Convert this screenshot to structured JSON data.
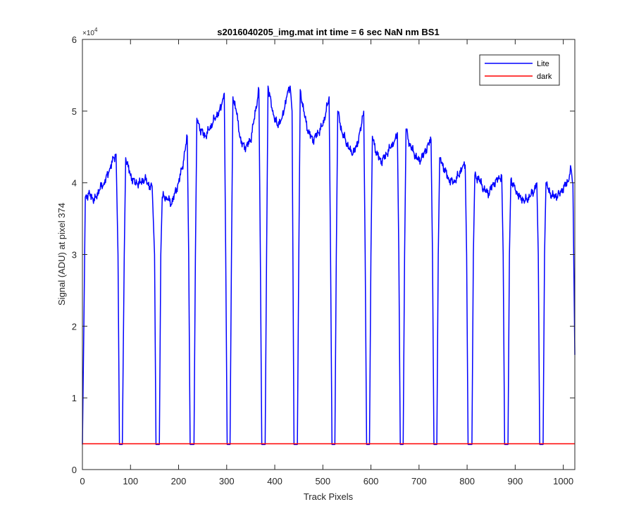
{
  "chart_data": {
    "type": "line",
    "title": "s2016040205_img.mat int time = 6 sec  NaN nm BS1",
    "xlabel": "Track Pixels",
    "ylabel": "Signal (ADU) at pixel 374",
    "xlim": [
      0,
      1024
    ],
    "ylim": [
      0,
      60000
    ],
    "x_ticks": [
      0,
      100,
      200,
      300,
      400,
      500,
      600,
      700,
      800,
      900,
      1000
    ],
    "y_ticks": [
      0,
      10000,
      20000,
      30000,
      40000,
      50000,
      60000
    ],
    "y_tick_labels": [
      "0",
      "1",
      "2",
      "3",
      "4",
      "5",
      "6"
    ],
    "y_multiplier": "×10",
    "y_multiplier_exp": "4",
    "grid": false,
    "legend_position": "top-right",
    "series": [
      {
        "name": "Lite",
        "color": "#0000ff",
        "baseline": 3500,
        "points": [
          [
            0,
            3500
          ],
          [
            3,
            20000
          ],
          [
            6,
            38000
          ],
          [
            15,
            38500
          ],
          [
            25,
            37500
          ],
          [
            35,
            39000
          ],
          [
            45,
            40000
          ],
          [
            55,
            41500
          ],
          [
            65,
            43500
          ],
          [
            70,
            44000
          ],
          [
            74,
            30000
          ],
          [
            77,
            3500
          ],
          [
            83,
            3500
          ],
          [
            87,
            30000
          ],
          [
            90,
            43500
          ],
          [
            100,
            41000
          ],
          [
            110,
            40000
          ],
          [
            120,
            40000
          ],
          [
            130,
            40500
          ],
          [
            140,
            39500
          ],
          [
            145,
            39500
          ],
          [
            150,
            30000
          ],
          [
            153,
            3500
          ],
          [
            160,
            3500
          ],
          [
            163,
            30000
          ],
          [
            166,
            38000
          ],
          [
            175,
            38000
          ],
          [
            185,
            37000
          ],
          [
            192,
            38500
          ],
          [
            200,
            40000
          ],
          [
            210,
            43000
          ],
          [
            218,
            46500
          ],
          [
            221,
            30000
          ],
          [
            224,
            3500
          ],
          [
            232,
            3500
          ],
          [
            235,
            30000
          ],
          [
            238,
            49000
          ],
          [
            245,
            47500
          ],
          [
            255,
            46500
          ],
          [
            265,
            47500
          ],
          [
            275,
            49000
          ],
          [
            285,
            50000
          ],
          [
            290,
            51000
          ],
          [
            295,
            52500
          ],
          [
            298,
            30000
          ],
          [
            301,
            3500
          ],
          [
            307,
            3500
          ],
          [
            310,
            30000
          ],
          [
            313,
            52000
          ],
          [
            320,
            50000
          ],
          [
            330,
            45500
          ],
          [
            340,
            45000
          ],
          [
            350,
            46000
          ],
          [
            360,
            50000
          ],
          [
            367,
            53000
          ],
          [
            370,
            30000
          ],
          [
            373,
            3500
          ],
          [
            380,
            3500
          ],
          [
            383,
            30000
          ],
          [
            386,
            53500
          ],
          [
            395,
            50000
          ],
          [
            405,
            48000
          ],
          [
            415,
            49000
          ],
          [
            425,
            52000
          ],
          [
            432,
            53500
          ],
          [
            436,
            50000
          ],
          [
            440,
            3500
          ],
          [
            447,
            3500
          ],
          [
            450,
            30000
          ],
          [
            453,
            53000
          ],
          [
            460,
            50000
          ],
          [
            470,
            47000
          ],
          [
            480,
            46000
          ],
          [
            490,
            47000
          ],
          [
            500,
            48000
          ],
          [
            510,
            51000
          ],
          [
            513,
            52000
          ],
          [
            516,
            30000
          ],
          [
            519,
            3500
          ],
          [
            525,
            3500
          ],
          [
            528,
            30000
          ],
          [
            531,
            50000
          ],
          [
            540,
            47000
          ],
          [
            550,
            45500
          ],
          [
            560,
            44000
          ],
          [
            570,
            45000
          ],
          [
            580,
            48000
          ],
          [
            585,
            50000
          ],
          [
            588,
            30000
          ],
          [
            591,
            3500
          ],
          [
            597,
            3500
          ],
          [
            600,
            30000
          ],
          [
            603,
            46500
          ],
          [
            612,
            44000
          ],
          [
            622,
            43000
          ],
          [
            632,
            44000
          ],
          [
            642,
            45000
          ],
          [
            650,
            46000
          ],
          [
            655,
            47000
          ],
          [
            658,
            30000
          ],
          [
            661,
            3500
          ],
          [
            667,
            3500
          ],
          [
            670,
            30000
          ],
          [
            673,
            47500
          ],
          [
            680,
            45500
          ],
          [
            690,
            44000
          ],
          [
            700,
            43000
          ],
          [
            710,
            44000
          ],
          [
            720,
            45500
          ],
          [
            725,
            46000
          ],
          [
            728,
            30000
          ],
          [
            731,
            3500
          ],
          [
            737,
            3500
          ],
          [
            740,
            30000
          ],
          [
            743,
            43500
          ],
          [
            752,
            42000
          ],
          [
            762,
            40500
          ],
          [
            772,
            40000
          ],
          [
            782,
            41000
          ],
          [
            792,
            42500
          ],
          [
            796,
            42500
          ],
          [
            799,
            30000
          ],
          [
            802,
            3500
          ],
          [
            810,
            3500
          ],
          [
            813,
            30000
          ],
          [
            816,
            41000
          ],
          [
            825,
            40500
          ],
          [
            835,
            39000
          ],
          [
            845,
            38500
          ],
          [
            855,
            40000
          ],
          [
            865,
            40500
          ],
          [
            872,
            41000
          ],
          [
            875,
            30000
          ],
          [
            878,
            3500
          ],
          [
            885,
            3500
          ],
          [
            888,
            30000
          ],
          [
            891,
            40500
          ],
          [
            900,
            39000
          ],
          [
            910,
            38000
          ],
          [
            920,
            37500
          ],
          [
            930,
            38000
          ],
          [
            940,
            39000
          ],
          [
            945,
            40000
          ],
          [
            948,
            30000
          ],
          [
            951,
            3500
          ],
          [
            958,
            3500
          ],
          [
            961,
            30000
          ],
          [
            964,
            40000
          ],
          [
            972,
            38500
          ],
          [
            982,
            38000
          ],
          [
            992,
            38500
          ],
          [
            1002,
            39500
          ],
          [
            1012,
            40500
          ],
          [
            1016,
            42000
          ],
          [
            1020,
            40000
          ],
          [
            1024,
            16000
          ]
        ]
      },
      {
        "name": "dark",
        "color": "#ff0000",
        "points": [
          [
            0,
            3600
          ],
          [
            1024,
            3600
          ]
        ]
      }
    ]
  }
}
